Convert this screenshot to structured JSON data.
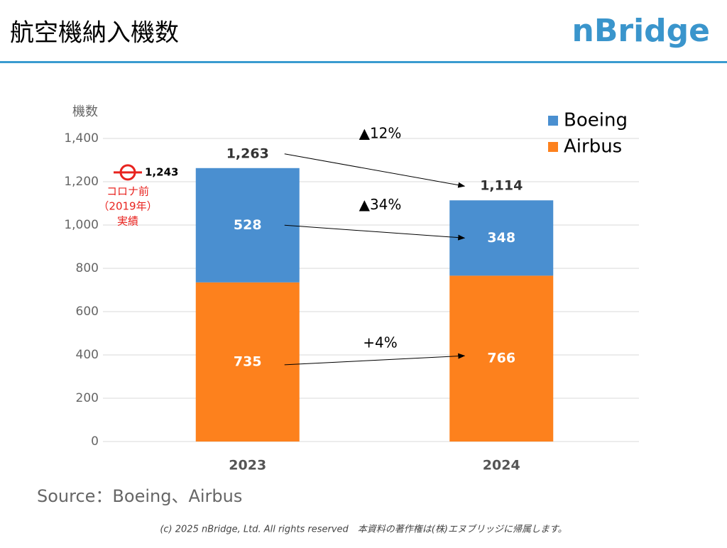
{
  "header": {
    "title": "航空機納入機数",
    "logo": "nBridge"
  },
  "chart_data": {
    "type": "stacked-bar",
    "y_label": "機数",
    "categories": [
      "2023",
      "2024"
    ],
    "series": [
      {
        "name": "Airbus",
        "color": "#fd811d",
        "values": [
          735,
          766
        ]
      },
      {
        "name": "Boeing",
        "color": "#4a8fd0",
        "values": [
          528,
          348
        ]
      }
    ],
    "totals": {
      "values": [
        1263,
        1114
      ],
      "value_labels": [
        "1,263",
        "1,114"
      ]
    },
    "reference": {
      "value": 1243,
      "value_label": "1,243",
      "label_lines": [
        "コロナ前",
        "（2019年）",
        "実績"
      ],
      "color": "#e8231f"
    },
    "annotations": [
      "▲12%",
      "▲34%",
      "+4%"
    ],
    "ylim": [
      0,
      1400
    ],
    "yticks": [
      0,
      200,
      400,
      600,
      800,
      {
        "value": 1000,
        "label": "1,000"
      },
      {
        "value": 1200,
        "label": "1,200"
      },
      {
        "value": 1400,
        "label": "1,400"
      }
    ],
    "grid": true,
    "legend": "top-right"
  },
  "footer": {
    "source": "Source：Boeing、Airbus",
    "copyright": "(c) 2025 nBridge, Ltd. All rights reserved　本資料の著作権は(株)エヌブリッジに帰属します。"
  }
}
